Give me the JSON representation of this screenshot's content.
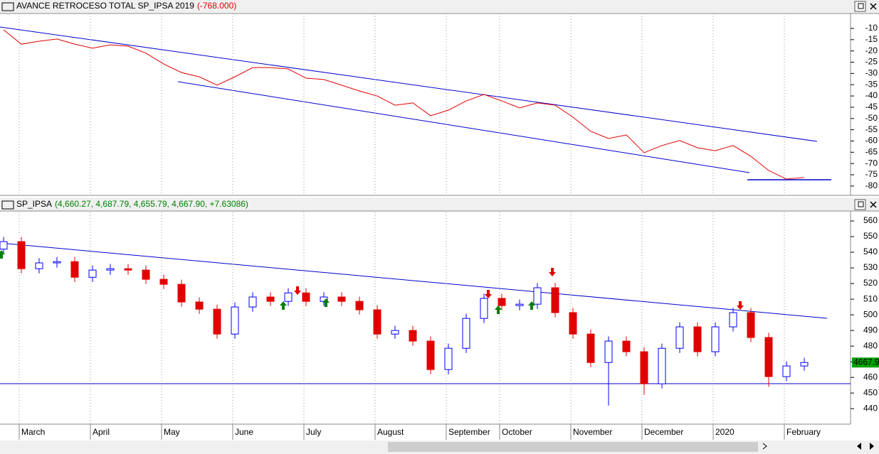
{
  "chart_data": [
    {
      "type": "line",
      "title": "AVANCE RETROCESO TOTAL SP_IPSA 2019",
      "subtitle": "(-768.000)",
      "color": "#e00000",
      "values": [
        -10.6,
        -17,
        -15.7,
        -14.7,
        -17,
        -18.8,
        -17.3,
        -17.9,
        -21,
        -25.8,
        -29.6,
        -31.5,
        -35.2,
        -31.5,
        -27.4,
        -27.4,
        -28,
        -32.1,
        -32.7,
        -35.2,
        -37.8,
        -40,
        -44.1,
        -43.1,
        -48.8,
        -46.3,
        -42.2,
        -39.3,
        -42.2,
        -45.3,
        -43.1,
        -44.1,
        -49.4,
        -55.7,
        -58.9,
        -57.3,
        -65.2,
        -62,
        -59.8,
        -63,
        -64.3,
        -62,
        -66.8,
        -73.1,
        -76.9,
        -76.2
      ],
      "ylim": [
        -83.2,
        -3.7
      ],
      "yticks": [
        -10,
        -15,
        -20,
        -25,
        -30,
        -35,
        -40,
        -45,
        -50,
        -55,
        -60,
        -65,
        -70,
        -75,
        -80
      ]
    },
    {
      "type": "candlestick",
      "title": "SP_IPSA",
      "subtitle": "(4,660.27, 4,687.79, 4,655.79, 4,667.90, +7.63086)",
      "up_color": "#0000ff",
      "down_color": "#e00000",
      "categories": [
        null,
        "March",
        null,
        null,
        null,
        "April",
        null,
        null,
        null,
        "May",
        null,
        null,
        null,
        "June",
        null,
        null,
        null,
        "July",
        null,
        null,
        null,
        "August",
        null,
        null,
        null,
        "September",
        null,
        null,
        "October",
        null,
        null,
        null,
        "November",
        null,
        null,
        null,
        "December",
        null,
        null,
        null,
        "2020",
        null,
        null,
        null,
        "February",
        null
      ],
      "open": [
        542,
        546.8,
        529.5,
        533.2,
        534,
        524,
        528.6,
        529.5,
        528.6,
        522.7,
        519.5,
        508.2,
        503.6,
        487.7,
        505,
        511.4,
        508.6,
        514,
        508.6,
        511.4,
        508.6,
        503.2,
        487.7,
        490,
        483.2,
        465,
        478.6,
        497.7,
        510.5,
        505.9,
        506.8,
        517.3,
        501.4,
        487.7,
        469.5,
        483.2,
        476.4,
        455.9,
        478.6,
        492.3,
        476.4,
        492.3,
        501.4,
        485.5,
        460.5,
        467.3
      ],
      "high": [
        549.8,
        549.8,
        536.2,
        537,
        537,
        531.6,
        532.5,
        532.5,
        531.6,
        525.7,
        522.5,
        511.2,
        506.6,
        508,
        514.4,
        514.4,
        517,
        517,
        514.4,
        514.4,
        511.6,
        506.2,
        493,
        493,
        486.2,
        481.6,
        500.7,
        513.5,
        513.5,
        509.8,
        520.3,
        520.3,
        504.4,
        490.7,
        486.2,
        486.2,
        479.4,
        481.6,
        495.3,
        495.3,
        495.3,
        504.4,
        504.4,
        488.5,
        470.3,
        472.5
      ],
      "low": [
        539,
        526.5,
        526.5,
        530.2,
        521,
        521,
        525.6,
        525.6,
        519.7,
        516.5,
        505.2,
        500.6,
        484.7,
        484.7,
        502,
        505.6,
        505.6,
        505.6,
        505.6,
        505.6,
        500.2,
        484.7,
        484.7,
        480.2,
        462,
        462,
        475.6,
        494.7,
        502.9,
        502.9,
        503.8,
        498.4,
        484.7,
        466.5,
        442,
        473.4,
        449,
        452.9,
        475.6,
        473.4,
        473.4,
        489.3,
        482.5,
        454,
        457.5,
        464.3
      ],
      "close": [
        546.8,
        529.5,
        533.2,
        534,
        524,
        528.6,
        529.5,
        528.6,
        522.7,
        519.5,
        508.2,
        503.6,
        487.7,
        505,
        511.4,
        508.6,
        514,
        508.6,
        511.4,
        508.6,
        503.2,
        487.7,
        490,
        483.2,
        465,
        478.6,
        497.7,
        510.5,
        505.9,
        506.8,
        517.3,
        501.4,
        487.7,
        469.5,
        483.2,
        476.4,
        455.9,
        478.6,
        492.3,
        476.4,
        492.3,
        501.4,
        485.5,
        460.5,
        467.3,
        469.5
      ],
      "last_value_label": "4667.9",
      "ylim": [
        431,
        565
      ],
      "yticks": [
        440,
        450,
        460,
        470,
        480,
        490,
        500,
        510,
        520,
        530,
        540,
        550,
        560
      ]
    }
  ]
}
